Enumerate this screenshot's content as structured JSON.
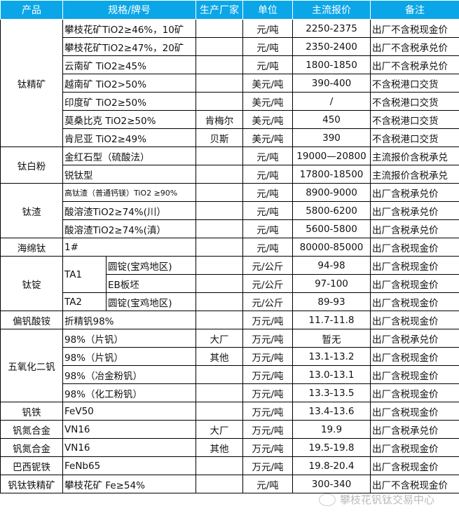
{
  "header": [
    "产品",
    "规格/牌号",
    "生产厂家",
    "单位",
    "主流报价",
    "备注"
  ],
  "colors": {
    "header_bg": "#0aa6e8",
    "header_text": "#ffffff"
  },
  "groups": [
    {
      "product": "钛精矿",
      "rows": [
        {
          "spec": "攀枝花矿TiO2≥46%，10矿",
          "maker": "",
          "unit": "元/吨",
          "price": "2250-2375",
          "note": "出厂不含税现金价"
        },
        {
          "spec": "攀枝花矿TiO2≥47%，20矿",
          "maker": "",
          "unit": "元/吨",
          "price": "2350-2400",
          "note": "出厂不含税承兑价"
        },
        {
          "spec": "云南矿 TiO2≥45%",
          "maker": "",
          "unit": "元/吨",
          "price": "1800-1850",
          "note": "出厂不含税承兑价"
        },
        {
          "spec": "越南矿 TiO2>50%",
          "maker": "",
          "unit": "美元/吨",
          "price": "390-400",
          "note": "不含税港口交货"
        },
        {
          "spec": "印度矿 TiO2≥50%",
          "maker": "",
          "unit": "美元/吨",
          "price": "/",
          "note": "不含税港口交货"
        },
        {
          "spec": "莫桑比克 TiO2≥50%",
          "maker": "肯梅尔",
          "unit": "美元/吨",
          "price": "450",
          "note": "不含税港口交货"
        },
        {
          "spec": "肯尼亚 TiO2≥49%",
          "maker": "贝斯",
          "unit": "美元/吨",
          "price": "390",
          "note": "不含税港口交货"
        }
      ]
    },
    {
      "product": "钛白粉",
      "rows": [
        {
          "spec": "金红石型（硫酸法）",
          "maker": "",
          "unit": "元/吨",
          "price": "19000—20800",
          "note": "主流报价含税承兑"
        },
        {
          "spec": "锐钛型",
          "maker": "",
          "unit": "元/吨",
          "price": "17800-18500",
          "note": "主流报价含税承兑"
        }
      ]
    },
    {
      "product": "钛渣",
      "rows": [
        {
          "spec": "高钛渣（普通钙镁）TiO2 ≥90%",
          "maker": "",
          "unit": "元/吨",
          "price": "8900-9000",
          "note": "出厂含税承兑价",
          "small": true
        },
        {
          "spec": "酸溶渣TiO2≥74%(川）",
          "maker": "",
          "unit": "元/吨",
          "price": "5800-6200",
          "note": "出厂含税承兑价"
        },
        {
          "spec": "酸溶渣TiO2≥74%(滇）",
          "maker": "",
          "unit": "元/吨",
          "price": "5600-5800",
          "note": "出厂含税承兑价"
        }
      ]
    },
    {
      "product": "海绵钛",
      "rows": [
        {
          "spec": "1#",
          "maker": "",
          "unit": "元/吨",
          "price": "80000-85000",
          "note": "出厂含税现金价"
        }
      ]
    },
    {
      "product": "钛锭",
      "rows": [
        {
          "spec": "TA1",
          "sub": "圆锭(宝鸡地区)",
          "maker": "",
          "unit": "元/公斤",
          "price": "94-98",
          "note": "出厂含税现金价"
        },
        {
          "spec": "TA1",
          "sub": "EB板坯",
          "maker": "",
          "unit": "元/公斤",
          "price": "97-100",
          "note": "出厂含税现金价"
        },
        {
          "spec": "TA2",
          "sub": "圆锭(宝鸡地区)",
          "maker": "",
          "unit": "元/公斤",
          "price": "89-93",
          "note": "出厂含税现金价"
        }
      ]
    },
    {
      "product": "偏钒酸铵",
      "rows": [
        {
          "spec": "折精钒98%",
          "maker": "",
          "unit": "万元/吨",
          "price": "11.7-11.8",
          "note": "出厂含税现金价"
        }
      ]
    },
    {
      "product": "五氧化二钒",
      "rows": [
        {
          "spec": "98%（片钒）",
          "maker": "大厂",
          "unit": "万元/吨",
          "price": "暂无",
          "note": "出厂含税承兑价"
        },
        {
          "spec": "98%（片钒）",
          "maker": "其他",
          "unit": "万元/吨",
          "price": "13.1-13.2",
          "note": "出厂含税现金价"
        },
        {
          "spec": "98%（冶金粉钒）",
          "maker": "",
          "unit": "万元/吨",
          "price": "13.0-13.1",
          "note": "出厂含税现金价"
        },
        {
          "spec": "98%（化工粉钒）",
          "maker": "",
          "unit": "万元/吨",
          "price": "13.3-13.5",
          "note": "出厂含税现金价"
        }
      ]
    },
    {
      "product": "钒铁",
      "rows": [
        {
          "spec": "FeV50",
          "maker": "",
          "unit": "万元/吨",
          "price": "13.4-13.6",
          "note": "出厂含税现金价"
        }
      ]
    },
    {
      "product": "钒氮合金",
      "rows": [
        {
          "spec": "VN16",
          "maker": "大厂",
          "unit": "万元/吨",
          "price": "19.9",
          "note": "出厂含税承兑价"
        }
      ]
    },
    {
      "product": "钒氮合金",
      "rows": [
        {
          "spec": "VN16",
          "maker": "其他",
          "unit": "万元/吨",
          "price": "19.5-19.8",
          "note": "出厂含税现金价"
        }
      ]
    },
    {
      "product": "巴西铌铁",
      "rows": [
        {
          "spec": "FeNb65",
          "maker": "",
          "unit": "万元/吨",
          "price": "19.8-20.4",
          "note": "出厂含税现金价"
        }
      ]
    },
    {
      "product": "钒钛铁精矿",
      "rows": [
        {
          "spec": "攀枝花矿 Fe≥54%",
          "maker": "",
          "unit": "元/吨",
          "price": "300-340",
          "note": "出厂不含税现金价"
        }
      ]
    }
  ],
  "watermark": {
    "text": "攀枝花钒钛交易中心",
    "icon": "wechat-icon"
  }
}
